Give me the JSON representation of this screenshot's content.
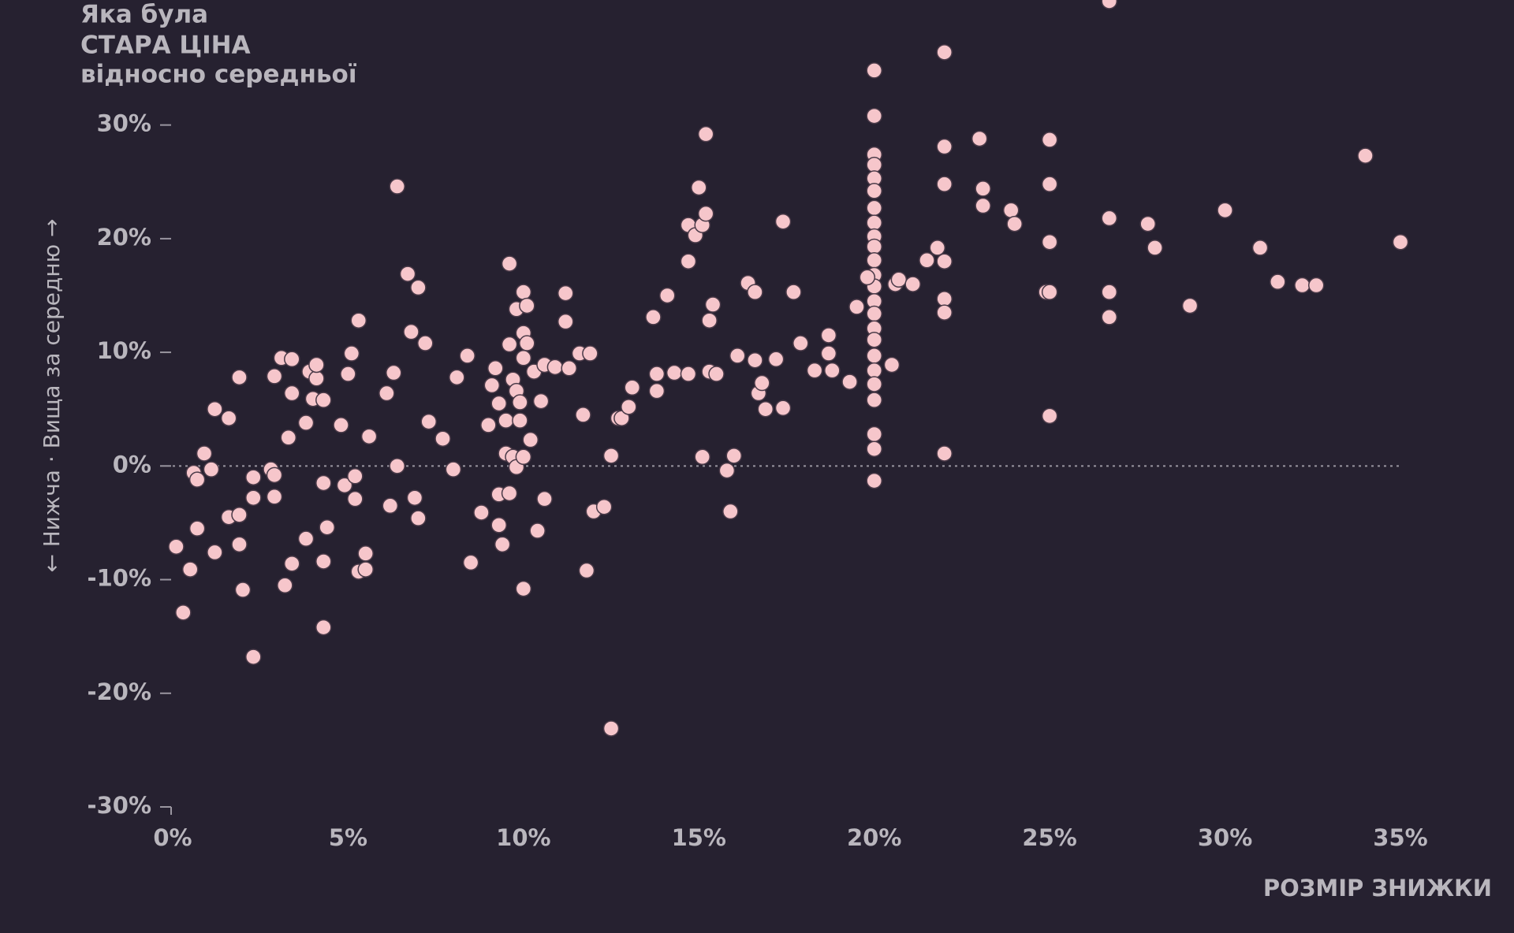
{
  "chart_data": {
    "type": "scatter",
    "title_lines": [
      "Яка була",
      "СТАРА ЦІНА",
      "відносно середньої"
    ],
    "y_label": "← Нижча · Вища за середню →",
    "x_label": "РОЗМІР ЗНИЖКИ",
    "color": "#f6c6cb",
    "x": [
      0.1,
      0.3,
      0.5,
      0.6,
      0.7,
      0.7,
      0.9,
      1.1,
      1.2,
      1.2,
      1.6,
      1.6,
      1.9,
      1.9,
      1.9,
      2.0,
      2.3,
      2.3,
      2.3,
      2.8,
      2.9,
      2.9,
      2.9,
      3.1,
      3.3,
      3.2,
      3.4,
      3.4,
      3.4,
      3.8,
      3.8,
      3.9,
      4.1,
      4.1,
      4.0,
      4.3,
      4.3,
      4.3,
      4.4,
      4.3,
      4.8,
      4.9,
      5.0,
      5.1,
      5.2,
      5.2,
      5.3,
      5.3,
      5.5,
      5.5,
      5.6,
      6.1,
      6.2,
      6.3,
      6.4,
      6.4,
      6.7,
      6.8,
      6.9,
      7.0,
      7.0,
      7.2,
      7.3,
      7.7,
      8.0,
      8.1,
      8.4,
      8.5,
      8.8,
      9.0,
      9.1,
      9.2,
      9.3,
      9.3,
      9.3,
      9.4,
      9.5,
      9.5,
      9.6,
      9.6,
      9.6,
      9.7,
      9.7,
      9.8,
      9.8,
      9.8,
      9.9,
      9.9,
      10.0,
      10.0,
      10.0,
      10.0,
      10.1,
      10.0,
      10.1,
      10.2,
      10.3,
      10.4,
      10.5,
      10.6,
      10.6,
      10.9,
      11.2,
      11.2,
      11.3,
      11.6,
      11.7,
      11.8,
      11.9,
      12.0,
      12.3,
      12.5,
      12.5,
      12.7,
      12.8,
      13.0,
      13.1,
      13.7,
      13.8,
      13.8,
      14.1,
      14.3,
      14.7,
      14.7,
      14.7,
      14.9,
      15.0,
      15.1,
      15.1,
      15.2,
      15.2,
      15.3,
      15.3,
      15.4,
      15.5,
      15.8,
      15.9,
      16.0,
      16.1,
      16.4,
      16.6,
      16.6,
      16.7,
      16.8,
      16.9,
      17.2,
      17.4,
      17.4,
      17.7,
      17.9,
      18.3,
      18.7,
      18.7,
      18.8,
      19.3,
      19.5,
      20,
      20,
      20,
      20,
      20,
      20,
      20,
      20,
      20,
      20,
      20,
      20,
      20,
      20,
      20,
      20,
      20,
      20,
      20,
      20,
      20,
      20,
      20,
      20,
      19.8,
      20.5,
      20.6,
      20.7,
      21.1,
      21.5,
      21.8,
      22.0,
      22.0,
      22.0,
      22.0,
      22.0,
      22.0,
      22.0,
      23.0,
      23.1,
      23.1,
      23.9,
      24.0,
      25.0,
      25.0,
      25.0,
      24.9,
      25.0,
      25.0,
      26.7,
      26.7,
      26.7,
      26.7,
      27.8,
      28.0,
      29.0,
      30.0,
      31.0,
      31.5,
      32.2,
      32.6,
      34.0,
      35.0
    ],
    "values": [
      -7.1,
      -12.9,
      -9.1,
      -0.6,
      -1.2,
      -5.5,
      1.1,
      -0.3,
      -7.6,
      5.0,
      4.2,
      -4.5,
      7.8,
      -4.3,
      -6.9,
      -10.9,
      -16.8,
      -1.0,
      -2.8,
      -0.3,
      -0.8,
      -2.7,
      7.9,
      9.5,
      2.5,
      -10.5,
      9.4,
      6.4,
      -8.6,
      3.8,
      -6.4,
      8.3,
      7.7,
      8.9,
      5.9,
      5.8,
      -1.5,
      -8.4,
      -5.4,
      -14.2,
      3.6,
      -1.7,
      8.1,
      9.9,
      -0.9,
      -2.9,
      12.8,
      -9.3,
      -7.7,
      -9.1,
      2.6,
      6.4,
      -3.5,
      8.2,
      24.6,
      0,
      16.9,
      11.8,
      -2.8,
      15.7,
      -4.6,
      10.8,
      3.9,
      2.4,
      -0.3,
      7.8,
      9.7,
      -8.5,
      -4.1,
      3.6,
      7.1,
      8.6,
      5.5,
      -2.5,
      -5.2,
      -6.9,
      4.0,
      1.1,
      17.8,
      10.7,
      -2.4,
      7.6,
      0.8,
      6.6,
      -0.1,
      13.8,
      5.6,
      4.0,
      15.3,
      11.7,
      -10.8,
      9.5,
      10.8,
      0.8,
      14.1,
      2.3,
      8.3,
      -5.7,
      5.7,
      -2.9,
      8.9,
      8.7,
      12.7,
      15.2,
      8.6,
      9.9,
      4.5,
      -9.2,
      9.9,
      -4.0,
      -3.6,
      0.9,
      -23.1,
      4.2,
      4.2,
      5.2,
      6.9,
      13.1,
      6.6,
      8.1,
      15.0,
      8.2,
      18.0,
      8.1,
      21.2,
      20.3,
      24.5,
      21.2,
      0.8,
      29.2,
      22.2,
      12.8,
      8.3,
      14.2,
      8.1,
      -0.4,
      -4.0,
      0.9,
      9.7,
      16.1,
      15.3,
      9.3,
      6.4,
      7.3,
      5.0,
      9.4,
      21.5,
      5.1,
      15.3,
      10.8,
      8.4,
      11.5,
      9.9,
      8.4,
      7.4,
      14.0,
      34.8,
      30.8,
      27.4,
      26.5,
      25.3,
      24.2,
      22.7,
      21.4,
      20.2,
      19.3,
      18.1,
      16.8,
      15.8,
      14.5,
      13.4,
      12.1,
      11.1,
      9.7,
      8.4,
      7.2,
      5.8,
      2.8,
      1.5,
      -1.3,
      16.6,
      8.9,
      16.0,
      16.4,
      16.0,
      18.1,
      19.2,
      36.4,
      28.1,
      24.8,
      18.0,
      14.7,
      13.5,
      1.1,
      28.8,
      24.4,
      22.9,
      22.5,
      21.3,
      28.7,
      24.8,
      19.7,
      15.3,
      15.3,
      4.4,
      40.9,
      21.8,
      15.3,
      13.1,
      21.3,
      19.2,
      14.1,
      22.5,
      19.2,
      16.2,
      15.9,
      15.9,
      27.3,
      19.7
    ],
    "xlim": [
      0,
      35
    ],
    "ylim": [
      -30,
      41
    ],
    "xticks": [
      {
        "value": 0,
        "label": "0%"
      },
      {
        "value": 5,
        "label": "5%"
      },
      {
        "value": 10,
        "label": "10%"
      },
      {
        "value": 15,
        "label": "15%"
      },
      {
        "value": 20,
        "label": "20%"
      },
      {
        "value": 25,
        "label": "25%"
      },
      {
        "value": 30,
        "label": "30%"
      },
      {
        "value": 35,
        "label": "35%"
      }
    ],
    "yticks": [
      {
        "value": -30,
        "label": "-30%"
      },
      {
        "value": -20,
        "label": "-20%"
      },
      {
        "value": -10,
        "label": "-10%"
      },
      {
        "value": 0,
        "label": "0%"
      },
      {
        "value": 10,
        "label": "10%"
      },
      {
        "value": 20,
        "label": "20%"
      },
      {
        "value": 30,
        "label": "30%"
      }
    ]
  }
}
